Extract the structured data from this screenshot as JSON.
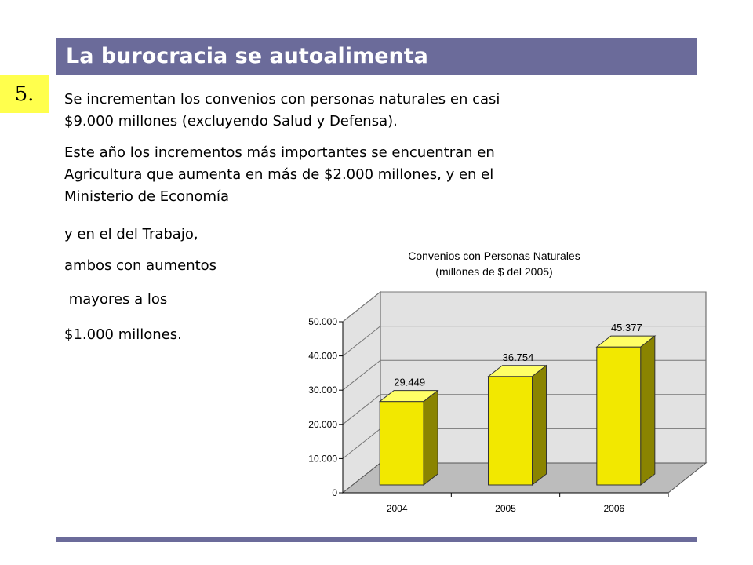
{
  "slide": {
    "title": "La burocracia se autoalimenta",
    "number": "5.",
    "paragraphs": [
      "Se incrementan los convenios con personas naturales en casi",
      "$9.000 millones (excluyendo Salud y Defensa).",
      "Este año los incrementos más importantes se encuentran en",
      "Agricultura que aumenta en más de $2.000 millones, y en el",
      "Ministerio de Economía",
      "y en el del Trabajo,",
      "ambos con aumentos",
      " mayores a los",
      "$1.000 millones."
    ]
  },
  "colors": {
    "accent": "#6b6b9a",
    "badge": "#ffff4d",
    "bar": "#f2e800",
    "wall": "#e2e2e2",
    "floor": "#bcbcbc"
  },
  "chart_data": {
    "type": "bar",
    "title": "Convenios con Personas Naturales",
    "subtitle": "(millones de $ del 2005)",
    "categories": [
      "2004",
      "2005",
      "2006"
    ],
    "values": [
      29449,
      36754,
      45377
    ],
    "value_labels": [
      "29.449",
      "36.754",
      "45.377"
    ],
    "ylim": [
      0,
      50000
    ],
    "yticks": [
      0,
      10000,
      20000,
      30000,
      40000,
      50000
    ],
    "ytick_labels": [
      "0",
      "10.000",
      "20.000",
      "30.000",
      "40.000",
      "50.000"
    ],
    "grid": true,
    "legend": "none",
    "style": "3d"
  }
}
